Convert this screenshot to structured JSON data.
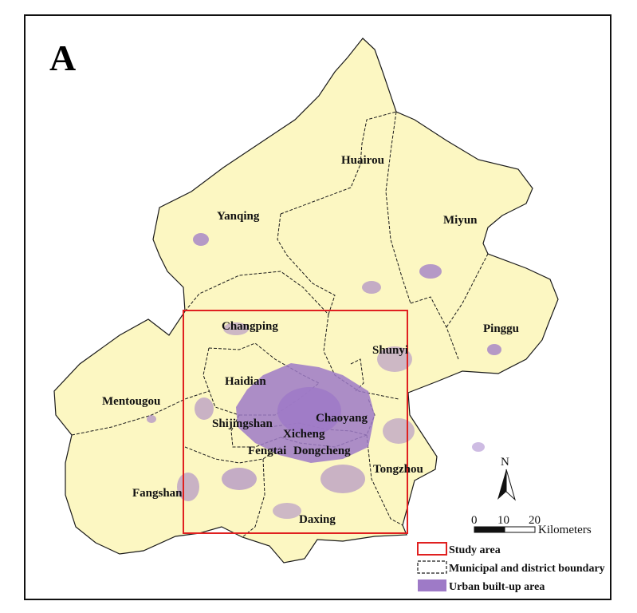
{
  "panel_label": "A",
  "districts": {
    "huairou": "Huairou",
    "yanqing": "Yanqing",
    "miyun": "Miyun",
    "changping": "Changping",
    "pinggu": "Pinggu",
    "shunyi": "Shunyi",
    "haidian": "Haidian",
    "mentougou": "Mentougou",
    "shijingshan": "Shijingshan",
    "chaoyang": "Chaoyang",
    "xicheng": "Xicheng",
    "fengtai": "Fengtai",
    "dongcheng": "Dongcheng",
    "tongzhou": "Tongzhou",
    "fangshan": "Fangshan",
    "daxing": "Daxing"
  },
  "north_arrow": {
    "label": "N"
  },
  "scale_bar": {
    "ticks": [
      "0",
      "10",
      "20"
    ],
    "unit": "Kilometers"
  },
  "legend": {
    "study_area": "Study area",
    "boundary": "Municipal and district boundary",
    "urban": "Urban built-up area"
  },
  "colors": {
    "land": "#fcf7c2",
    "urban": "#9e7ac7",
    "study_area": "#e02020",
    "boundary": "#1a1a1a"
  }
}
